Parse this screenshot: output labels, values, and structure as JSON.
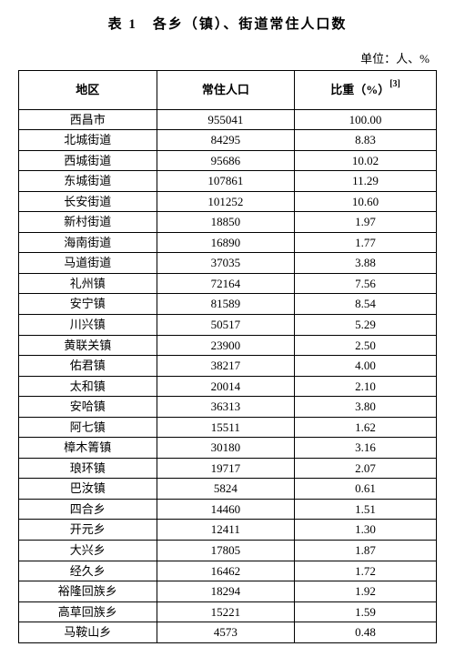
{
  "title": "表 1　各乡（镇）、街道常住人口数",
  "unit": "单位：人、%",
  "columns": [
    "地区",
    "常住人口",
    "比重（%）"
  ],
  "footnote_mark": "[3]",
  "rows": [
    [
      "西昌市",
      "955041",
      "100.00"
    ],
    [
      "北城街道",
      "84295",
      "8.83"
    ],
    [
      "西城街道",
      "95686",
      "10.02"
    ],
    [
      "东城街道",
      "107861",
      "11.29"
    ],
    [
      "长安街道",
      "101252",
      "10.60"
    ],
    [
      "新村街道",
      "18850",
      "1.97"
    ],
    [
      "海南街道",
      "16890",
      "1.77"
    ],
    [
      "马道街道",
      "37035",
      "3.88"
    ],
    [
      "礼州镇",
      "72164",
      "7.56"
    ],
    [
      "安宁镇",
      "81589",
      "8.54"
    ],
    [
      "川兴镇",
      "50517",
      "5.29"
    ],
    [
      "黄联关镇",
      "23900",
      "2.50"
    ],
    [
      "佑君镇",
      "38217",
      "4.00"
    ],
    [
      "太和镇",
      "20014",
      "2.10"
    ],
    [
      "安哈镇",
      "36313",
      "3.80"
    ],
    [
      "阿七镇",
      "15511",
      "1.62"
    ],
    [
      "樟木箐镇",
      "30180",
      "3.16"
    ],
    [
      "琅环镇",
      "19717",
      "2.07"
    ],
    [
      "巴汝镇",
      "5824",
      "0.61"
    ],
    [
      "四合乡",
      "14460",
      "1.51"
    ],
    [
      "开元乡",
      "12411",
      "1.30"
    ],
    [
      "大兴乡",
      "17805",
      "1.87"
    ],
    [
      "经久乡",
      "16462",
      "1.72"
    ],
    [
      "裕隆回族乡",
      "18294",
      "1.92"
    ],
    [
      "高草回族乡",
      "15221",
      "1.59"
    ],
    [
      "马鞍山乡",
      "4573",
      "0.48"
    ]
  ]
}
